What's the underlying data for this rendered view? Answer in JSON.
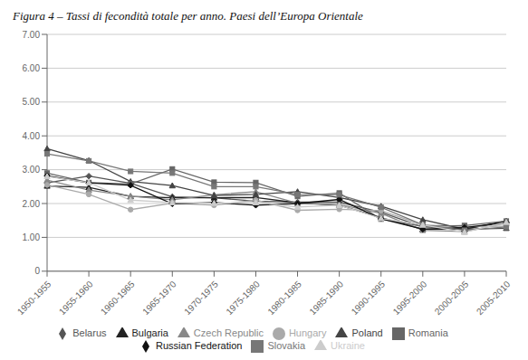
{
  "chart_data": {
    "type": "line",
    "title": "Figura 4 – Tassi di fecondità totale per anno. Paesi dell’Europa Orientale",
    "categories": [
      "1950-1955",
      "1955-1960",
      "1960-1965",
      "1965-1970",
      "1970-1975",
      "1975-1980",
      "1980-1985",
      "1985-1990",
      "1990-1995",
      "1995-2000",
      "2000-2005",
      "2005-2010"
    ],
    "series": [
      {
        "name": "Belarus",
        "color": "#555555",
        "marker": "diamond",
        "values": [
          2.61,
          2.81,
          2.6,
          2.2,
          2.17,
          2.07,
          2.04,
          2.04,
          1.74,
          1.31,
          1.25,
          1.45
        ]
      },
      {
        "name": "Bulgaria",
        "color": "#222222",
        "marker": "triangle",
        "values": [
          2.52,
          2.48,
          2.21,
          2.17,
          2.17,
          2.18,
          2.02,
          1.95,
          1.58,
          1.24,
          1.24,
          1.48
        ]
      },
      {
        "name": "Czech Republic",
        "color": "#888888",
        "marker": "triangle",
        "values": [
          2.69,
          2.4,
          2.22,
          2.11,
          2.26,
          2.35,
          2.01,
          1.97,
          1.71,
          1.21,
          1.17,
          1.42
        ]
      },
      {
        "name": "Hungary",
        "color": "#aaaaaa",
        "marker": "circle",
        "values": [
          2.55,
          2.27,
          1.82,
          2.01,
          1.95,
          2.1,
          1.8,
          1.83,
          1.79,
          1.37,
          1.32,
          1.33
        ]
      },
      {
        "name": "Poland",
        "color": "#444444",
        "marker": "triangle",
        "values": [
          3.62,
          3.27,
          2.65,
          2.53,
          2.24,
          2.27,
          2.35,
          2.18,
          1.92,
          1.52,
          1.24,
          1.27
        ]
      },
      {
        "name": "Romania",
        "color": "#666666",
        "marker": "square",
        "values": [
          2.9,
          2.62,
          2.58,
          3.02,
          2.63,
          2.62,
          2.21,
          2.31,
          1.54,
          1.32,
          1.35,
          1.48
        ]
      },
      {
        "name": "Russian Federation",
        "color": "#111111",
        "marker": "diamond",
        "values": [
          2.82,
          2.61,
          2.54,
          1.99,
          2.03,
          1.95,
          2.0,
          2.12,
          1.55,
          1.24,
          1.29,
          1.44
        ]
      },
      {
        "name": "Slovakia",
        "color": "#777777",
        "marker": "square",
        "values": [
          3.47,
          3.26,
          2.95,
          2.9,
          2.5,
          2.5,
          2.27,
          2.26,
          1.89,
          1.37,
          1.21,
          1.31
        ]
      },
      {
        "name": "Ukraine",
        "color": "#cccccc",
        "marker": "triangle",
        "values": [
          2.8,
          2.62,
          2.1,
          2.03,
          2.01,
          2.03,
          1.9,
          1.95,
          1.56,
          1.37,
          1.15,
          1.45
        ]
      }
    ],
    "ylim": [
      0,
      7.0
    ],
    "yticks": [
      0,
      {
        "value": 1.0,
        "label": "1.00"
      },
      {
        "value": 2.0,
        "label": "2.00"
      },
      {
        "value": 3.0,
        "label": "3.00"
      },
      {
        "value": 4.0,
        "label": "4.00"
      },
      {
        "value": 5.0,
        "label": "5.00"
      },
      {
        "value": 6.0,
        "label": "6.00"
      },
      {
        "value": 7.0,
        "label": "7.00"
      }
    ],
    "grid": true,
    "legend": "bottom"
  }
}
